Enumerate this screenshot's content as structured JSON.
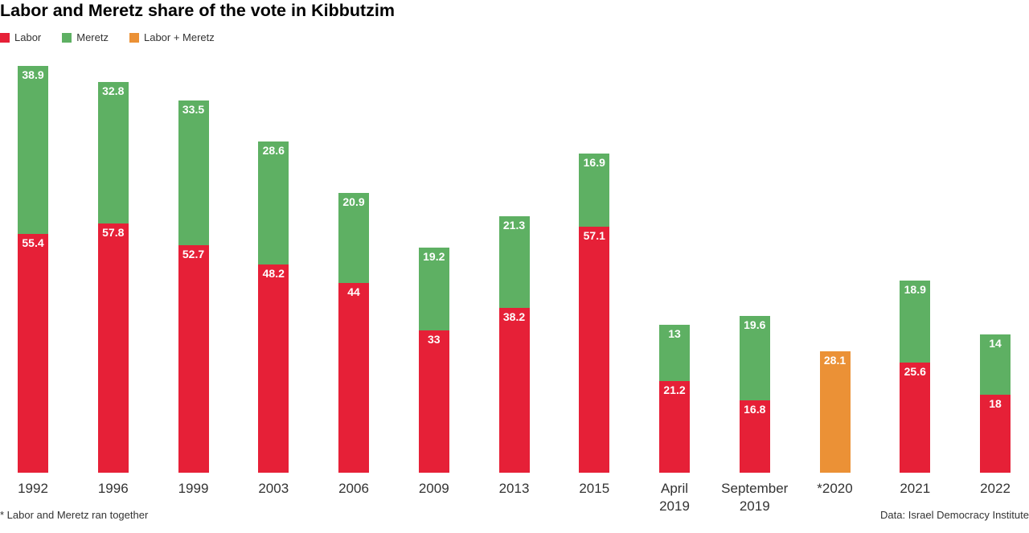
{
  "chart_data": {
    "type": "bar",
    "stacked": true,
    "title": "Labor and Meretz share of the vote in Kibbutzim",
    "xlabel": "",
    "ylabel": "",
    "ylim": [
      0,
      100
    ],
    "grid": false,
    "legend_position": "top-left",
    "categories": [
      "1992",
      "1996",
      "1999",
      "2003",
      "2006",
      "2009",
      "2013",
      "2015",
      "April 2019",
      "September 2019",
      "*2020",
      "2021",
      "2022"
    ],
    "series": [
      {
        "name": "Labor",
        "color": "#e62037",
        "values": [
          55.4,
          57.8,
          52.7,
          48.2,
          44,
          33,
          38.2,
          57.1,
          21.2,
          16.8,
          null,
          25.6,
          18
        ]
      },
      {
        "name": "Meretz",
        "color": "#5eb063",
        "values": [
          38.9,
          32.8,
          33.5,
          28.6,
          20.9,
          19.2,
          21.3,
          16.9,
          13,
          19.6,
          null,
          18.9,
          14
        ]
      },
      {
        "name": "Labor + Meretz",
        "color": "#eb9136",
        "values": [
          null,
          null,
          null,
          null,
          null,
          null,
          null,
          null,
          null,
          null,
          28.1,
          null,
          null
        ]
      }
    ],
    "footnote": "* Labor and Meretz ran together",
    "source": "Data: Israel Democracy Institute"
  }
}
